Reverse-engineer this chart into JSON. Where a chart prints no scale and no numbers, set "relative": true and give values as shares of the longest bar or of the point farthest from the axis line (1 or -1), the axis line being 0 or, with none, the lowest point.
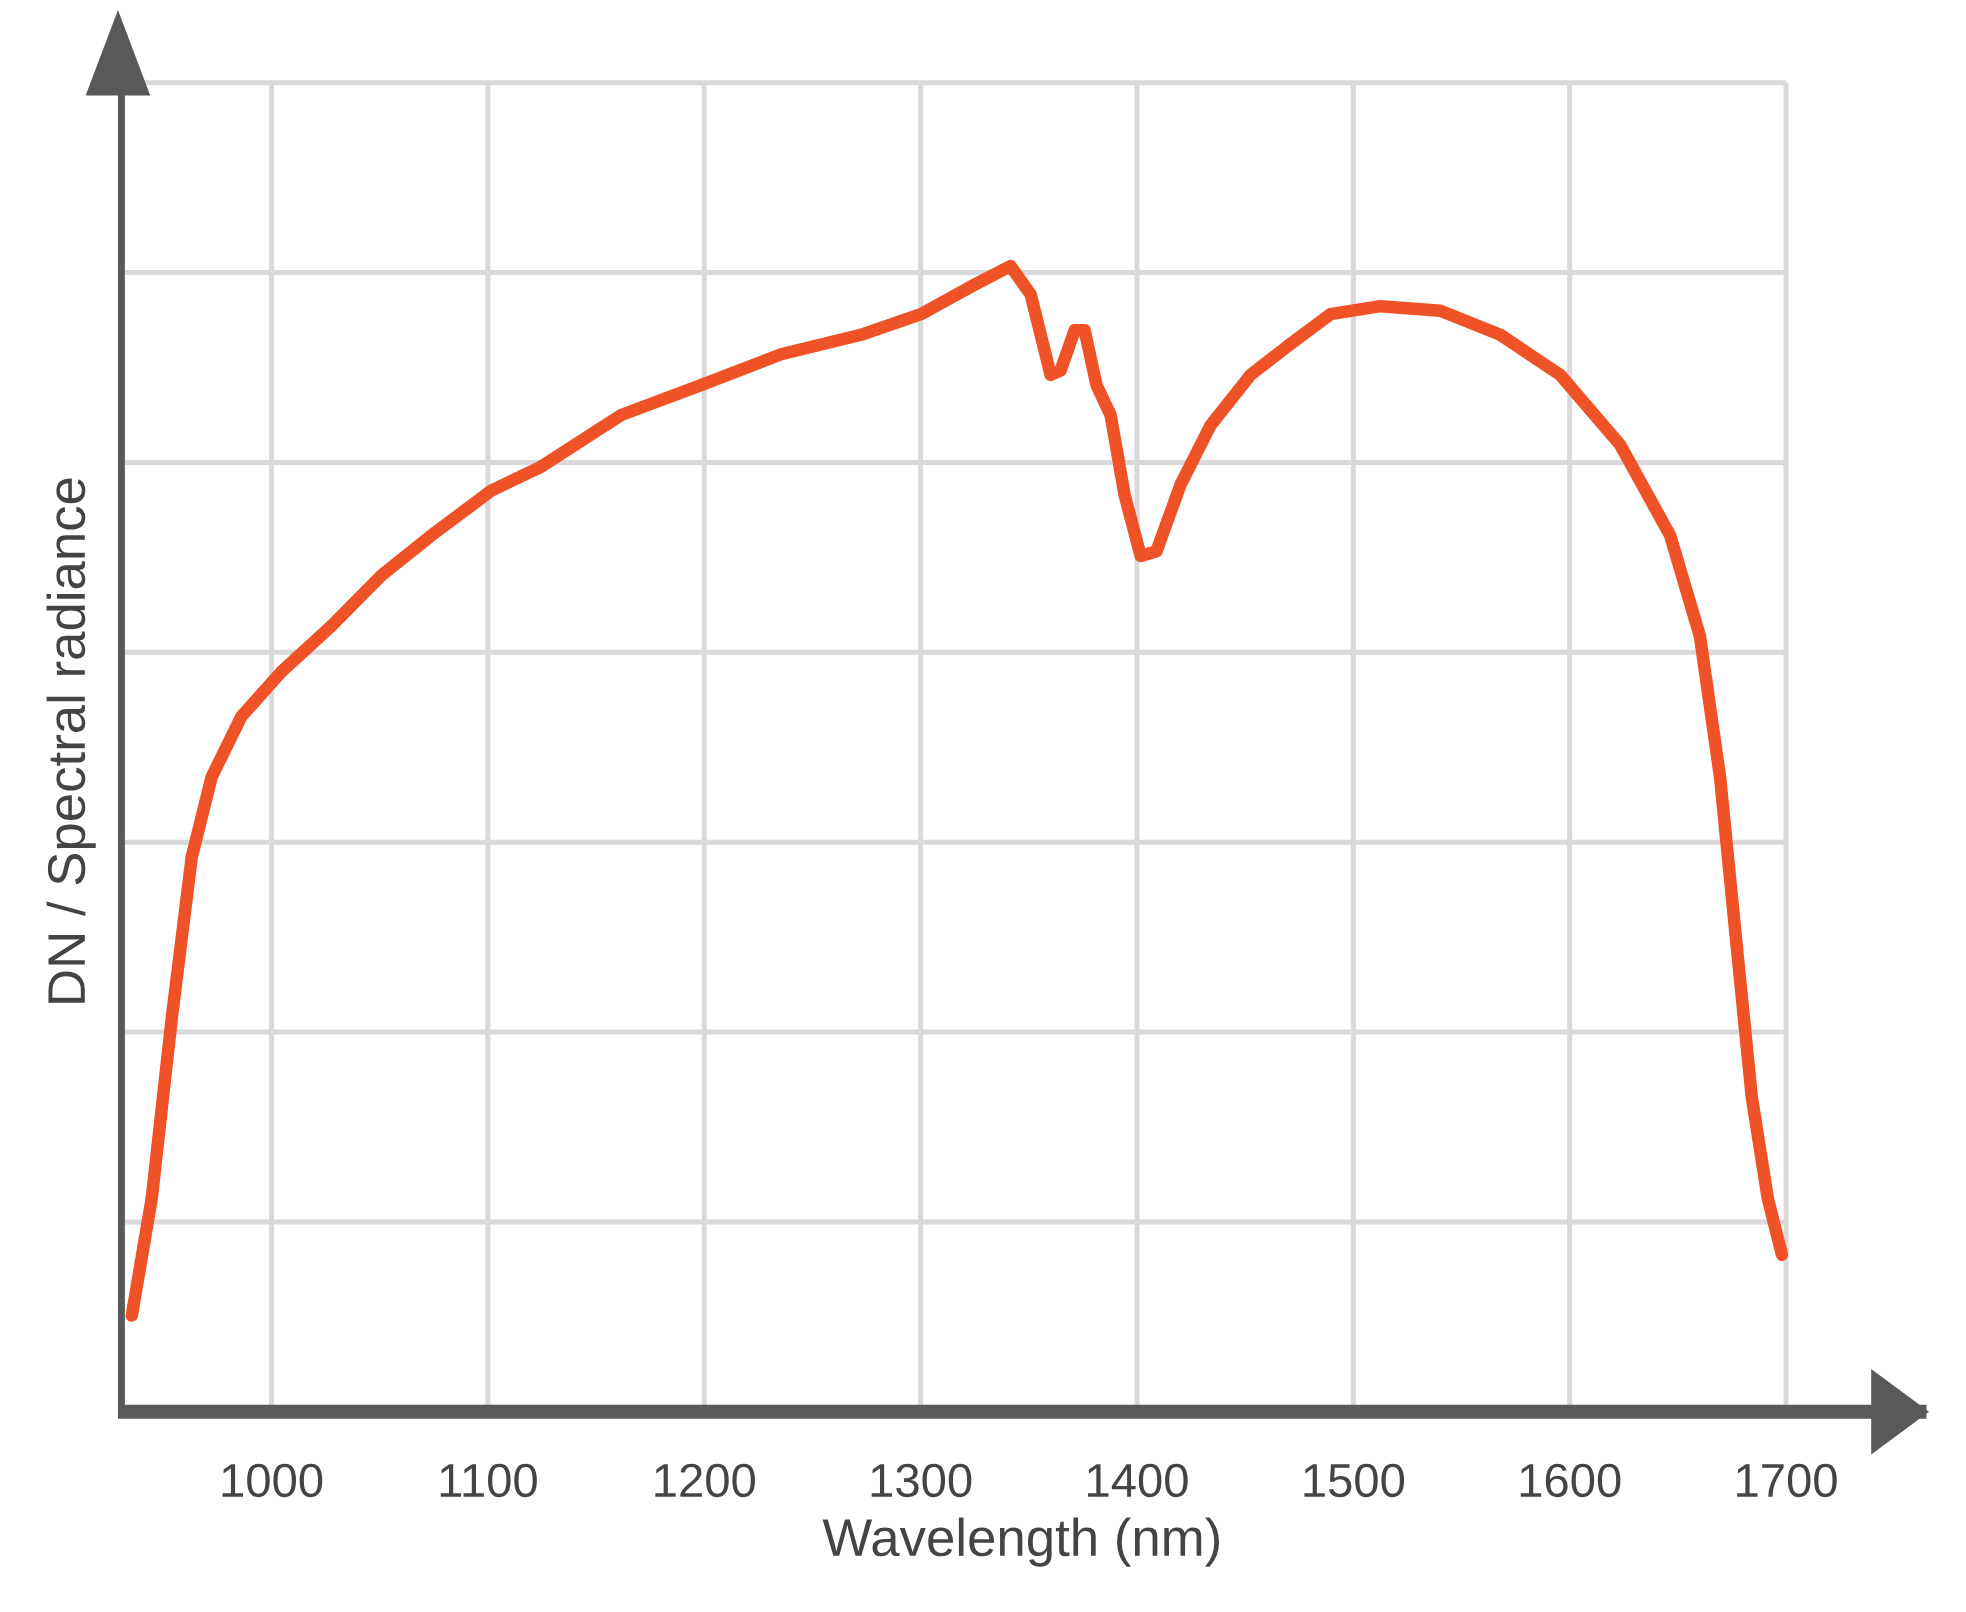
{
  "chart_data": {
    "type": "line",
    "relative": true,
    "xlabel": "Wavelength (nm)",
    "ylabel": "DN / Spectral radiance",
    "xlim": [
      929,
      1765
    ],
    "xticks": [
      1000,
      1100,
      1200,
      1300,
      1400,
      1500,
      1600,
      1700
    ],
    "grid": true,
    "marker": "none",
    "line_style": "solid",
    "tick_labels": "x",
    "series": [
      {
        "color": "#f05228",
        "x": [
          935.4,
          944.6,
          953.9,
          963.1,
          972.3,
          986.1,
          1004.6,
          1027.7,
          1050.8,
          1073.9,
          1101.6,
          1124.7,
          1161.6,
          1198.5,
          1235.5,
          1272.4,
          1300.1,
          1323.2,
          1341.6,
          1350.9,
          1360.1,
          1364.7,
          1371.2,
          1375.8,
          1381.3,
          1387.8,
          1394.3,
          1401.7,
          1409.0,
          1420.1,
          1434.0,
          1452.5,
          1470.9,
          1489.4,
          1512.5,
          1540.2,
          1567.9,
          1595.6,
          1623.3,
          1646.4,
          1660.2,
          1669.5,
          1676.8,
          1684.2,
          1691.6,
          1698.1
        ],
        "values": [
          0.084,
          0.186,
          0.344,
          0.484,
          0.554,
          0.607,
          0.646,
          0.686,
          0.73,
          0.765,
          0.804,
          0.825,
          0.87,
          0.896,
          0.923,
          0.94,
          0.958,
          0.982,
          1.0,
          0.975,
          0.905,
          0.909,
          0.944,
          0.944,
          0.896,
          0.87,
          0.8,
          0.747,
          0.751,
          0.809,
          0.861,
          0.905,
          0.932,
          0.958,
          0.965,
          0.961,
          0.94,
          0.905,
          0.844,
          0.765,
          0.677,
          0.554,
          0.414,
          0.274,
          0.186,
          0.137
        ]
      }
    ]
  }
}
